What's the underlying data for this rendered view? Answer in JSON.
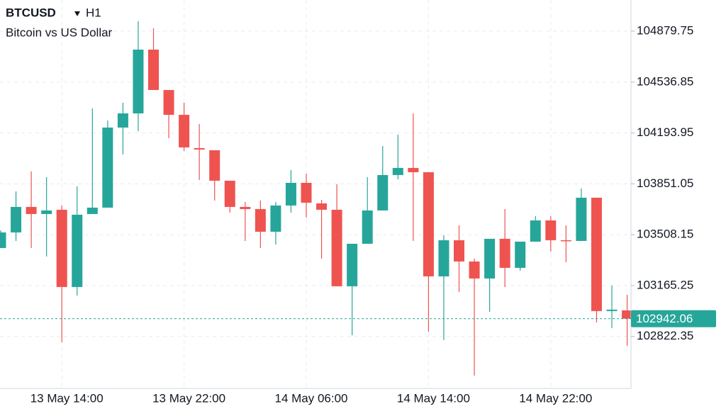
{
  "chart_data": {
    "type": "candlestick",
    "title": "BTCUSD",
    "interval": "H1",
    "subtitle": "Bitcoin vs US Dollar",
    "categories": [
      null,
      null,
      null,
      null,
      "13 May 14:00",
      null,
      null,
      null,
      null,
      null,
      null,
      null,
      "13 May 22:00",
      null,
      null,
      null,
      null,
      null,
      null,
      null,
      "14 May 06:00",
      null,
      null,
      null,
      null,
      null,
      null,
      null,
      "14 May 14:00",
      null,
      null,
      null,
      null,
      null,
      null,
      null,
      "14 May 22:00",
      null,
      null,
      null,
      null,
      null
    ],
    "open": [
      103418.4,
      103523.4,
      103695.4,
      103647.6,
      103676.3,
      103155.7,
      103647.6,
      103690.6,
      104230.3,
      104325.8,
      104755.6,
      104483.4,
      104316.2,
      104091.8,
      104077.4,
      103872.1,
      103695.4,
      103681.0,
      103528.2,
      103704.9,
      103857.7,
      103719.2,
      103676.3,
      103160.5,
      103447.0,
      103671.5,
      103910.3,
      103958.0,
      103929.4,
      103227.3,
      103470.9,
      103327.6,
      103213.0,
      103480.5,
      103284.6,
      103461.4,
      103604.6,
      103470.9,
      103466.1,
      103757.5,
      102993.3,
      102998.1
    ],
    "high": [
      103537.8,
      103800.4,
      103934.2,
      103895.9,
      103704.9,
      103833.9,
      104359.2,
      104278.0,
      104397.4,
      104946.6,
      104898.9,
      104483.4,
      104397.4,
      104254.1,
      104077.4,
      103872.1,
      103728.8,
      103738.4,
      103728.8,
      103943.7,
      103919.8,
      103743.1,
      103848.2,
      103447.0,
      103895.9,
      104106.1,
      104182.5,
      104325.8,
      103929.4,
      103504.3,
      103571.2,
      103346.7,
      103480.5,
      103681.0,
      103461.4,
      103633.3,
      103633.3,
      103571.2,
      103819.5,
      103757.5,
      103165.3,
      103103.2
    ],
    "low": [
      103418.4,
      103466.1,
      103418.4,
      103361.1,
      102783.2,
      103098.4,
      103647.6,
      103690.6,
      104048.8,
      104206.4,
      104483.4,
      104158.6,
      104072.7,
      103876.8,
      103738.4,
      103657.2,
      103466.1,
      103418.4,
      103442.2,
      103657.2,
      103623.7,
      103346.7,
      103160.5,
      102830.9,
      103447.0,
      103671.5,
      103881.6,
      103466.1,
      102854.8,
      102797.5,
      103122.3,
      102558.7,
      102988.5,
      103155.7,
      103265.5,
      103461.4,
      103394.5,
      103322.9,
      103466.1,
      102916.9,
      102878.7,
      102759.3
    ],
    "close": [
      103523.4,
      103695.4,
      103647.6,
      103671.5,
      103155.7,
      103642.8,
      103690.6,
      104230.3,
      104325.8,
      104755.6,
      104483.4,
      104316.2,
      104096.5,
      104082.2,
      103872.1,
      103695.4,
      103681.0,
      103528.2,
      103704.9,
      103857.7,
      103724.0,
      103676.3,
      103160.5,
      103447.0,
      103671.5,
      103910.3,
      103958.0,
      103929.4,
      103227.3,
      103470.9,
      103327.6,
      103213.0,
      103480.5,
      103284.6,
      103461.4,
      103604.6,
      103470.9,
      103466.1,
      103757.5,
      102993.3,
      103002.9,
      102942.06
    ],
    "up_color": "#26a69a",
    "down_color": "#ef5350",
    "ylim": [
      102472,
      105090
    ],
    "yticks": [
      102822.35,
      103165.25,
      103508.15,
      103851.05,
      104193.95,
      104536.85,
      104879.75
    ],
    "grid": true
  }
}
